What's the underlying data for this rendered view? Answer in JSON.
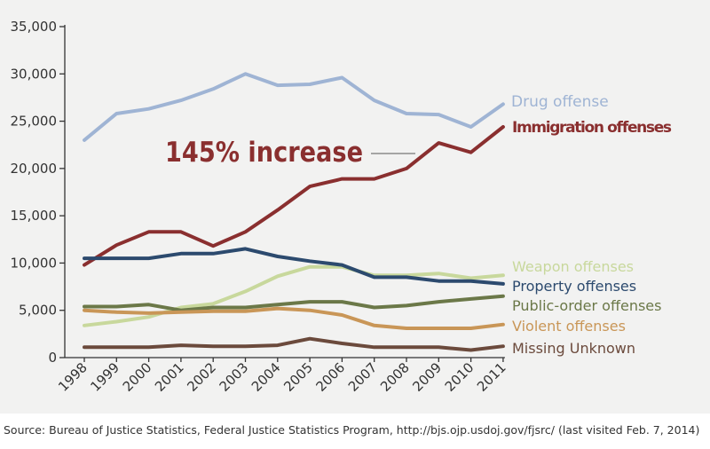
{
  "chart_data": {
    "type": "line",
    "x": [
      1998,
      1999,
      2000,
      2001,
      2002,
      2003,
      2004,
      2005,
      2006,
      2007,
      2008,
      2009,
      2010,
      2011
    ],
    "ylim": [
      0,
      35000
    ],
    "yticks": [
      0,
      5000,
      10000,
      15000,
      20000,
      25000,
      30000,
      35000
    ],
    "ytick_labels": [
      "0",
      "5,000",
      "10,000",
      "15,000",
      "20,000",
      "25,000",
      "30,000",
      "35,000"
    ],
    "xtick_labels": [
      "1998",
      "1999",
      "2000",
      "2001",
      "2002",
      "2003",
      "2004",
      "2005",
      "2006",
      "2007",
      "2008",
      "2009",
      "2010",
      "2011"
    ],
    "grid": false,
    "legend": "direct labels at right",
    "annotation": "145% increase",
    "series": [
      {
        "name": "Drug offense",
        "color": "#9fb4d4",
        "values": [
          23000,
          25800,
          26300,
          27200,
          28400,
          30000,
          28800,
          28900,
          29600,
          27200,
          25800,
          25700,
          24400,
          26800
        ]
      },
      {
        "name": "Immigration offenses",
        "color": "#8a2f2f",
        "values": [
          9800,
          11900,
          13300,
          13300,
          11800,
          13300,
          15600,
          18100,
          18900,
          18900,
          20000,
          22700,
          21700,
          24400
        ]
      },
      {
        "name": "Weapon offenses",
        "color": "#c8d89c",
        "values": [
          3400,
          3800,
          4300,
          5300,
          5700,
          7000,
          8600,
          9600,
          9600,
          8700,
          8700,
          8900,
          8400,
          8700
        ]
      },
      {
        "name": "Property offenses",
        "color": "#2c4a6e",
        "values": [
          10500,
          10500,
          10500,
          11000,
          11000,
          11500,
          10700,
          10200,
          9800,
          8500,
          8500,
          8100,
          8100,
          7800
        ]
      },
      {
        "name": "Public-order offenses",
        "color": "#6b7848",
        "values": [
          5400,
          5400,
          5600,
          5000,
          5300,
          5300,
          5600,
          5900,
          5900,
          5300,
          5500,
          5900,
          6200,
          6500
        ]
      },
      {
        "name": "Violent offenses",
        "color": "#c99657",
        "values": [
          5000,
          4800,
          4700,
          4800,
          4900,
          4900,
          5200,
          5000,
          4500,
          3400,
          3100,
          3100,
          3100,
          3500
        ]
      },
      {
        "name": "Missing Unknown",
        "color": "#6b4a3c",
        "values": [
          1100,
          1100,
          1100,
          1300,
          1200,
          1200,
          1300,
          2000,
          1500,
          1100,
          1100,
          1100,
          800,
          1200
        ]
      }
    ]
  },
  "source_note": "Source: Bureau of Justice Statistics, Federal Justice Statistics Program, http://bjs.ojp.usdoj.gov/fjsrc/ (last visited Feb. 7, 2014)"
}
